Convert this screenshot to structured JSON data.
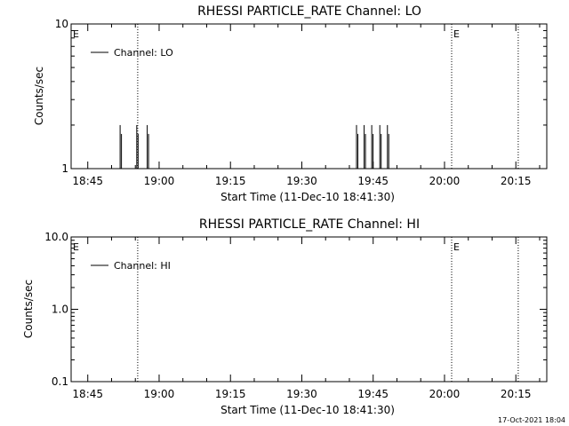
{
  "chart_data": [
    {
      "type": "line",
      "title": "RHESSI PARTICLE_RATE Channel: LO",
      "xlabel": "Start Time (11-Dec-10 18:41:30)",
      "ylabel": "Counts/sec",
      "yscale": "log",
      "ylim": [
        1,
        10
      ],
      "y_ticks": [
        "1",
        "10"
      ],
      "x_ticks": [
        "18:45",
        "19:00",
        "19:15",
        "19:30",
        "19:45",
        "20:00",
        "20:15"
      ],
      "x_tick_minutes": [
        3.5,
        18.5,
        33.5,
        48.5,
        63.5,
        78.5,
        93.5
      ],
      "xlim_minutes": [
        0,
        100
      ],
      "grid": false,
      "legend_position": "top-left",
      "legend": [
        "Channel: LO"
      ],
      "series": [
        {
          "name": "Channel: LO",
          "color": "#000000",
          "spikes": [
            {
              "x": 10.3,
              "y": 2
            },
            {
              "x": 13.8,
              "y": 2
            },
            {
              "x": 16.0,
              "y": 2
            },
            {
              "x": 60.0,
              "y": 2
            },
            {
              "x": 61.6,
              "y": 2
            },
            {
              "x": 63.2,
              "y": 2
            },
            {
              "x": 64.9,
              "y": 2
            },
            {
              "x": 66.5,
              "y": 2
            }
          ]
        }
      ],
      "markers": [
        {
          "label": "E",
          "x": 0.0
        },
        {
          "label": "E",
          "x": 80.0
        }
      ],
      "dotted_lines_minutes": [
        14.0,
        80.0,
        94.0
      ]
    },
    {
      "type": "line",
      "title": "RHESSI PARTICLE_RATE Channel: HI",
      "xlabel": "Start Time (11-Dec-10 18:41:30)",
      "ylabel": "Counts/sec",
      "yscale": "log",
      "ylim": [
        0.1,
        10
      ],
      "y_ticks": [
        "0.1",
        "1.0",
        "10.0"
      ],
      "x_ticks": [
        "18:45",
        "19:00",
        "19:15",
        "19:30",
        "19:45",
        "20:00",
        "20:15"
      ],
      "x_tick_minutes": [
        3.5,
        18.5,
        33.5,
        48.5,
        63.5,
        78.5,
        93.5
      ],
      "xlim_minutes": [
        0,
        100
      ],
      "grid": false,
      "legend_position": "top-left",
      "legend": [
        "Channel: HI"
      ],
      "series": [
        {
          "name": "Channel: HI",
          "color": "#000000",
          "spikes": []
        }
      ],
      "markers": [
        {
          "label": "E",
          "x": 0.0
        },
        {
          "label": "E",
          "x": 80.0
        }
      ],
      "dotted_lines_minutes": [
        14.0,
        80.0,
        94.0
      ]
    }
  ],
  "timestamp": "17-Oct-2021 18:04"
}
